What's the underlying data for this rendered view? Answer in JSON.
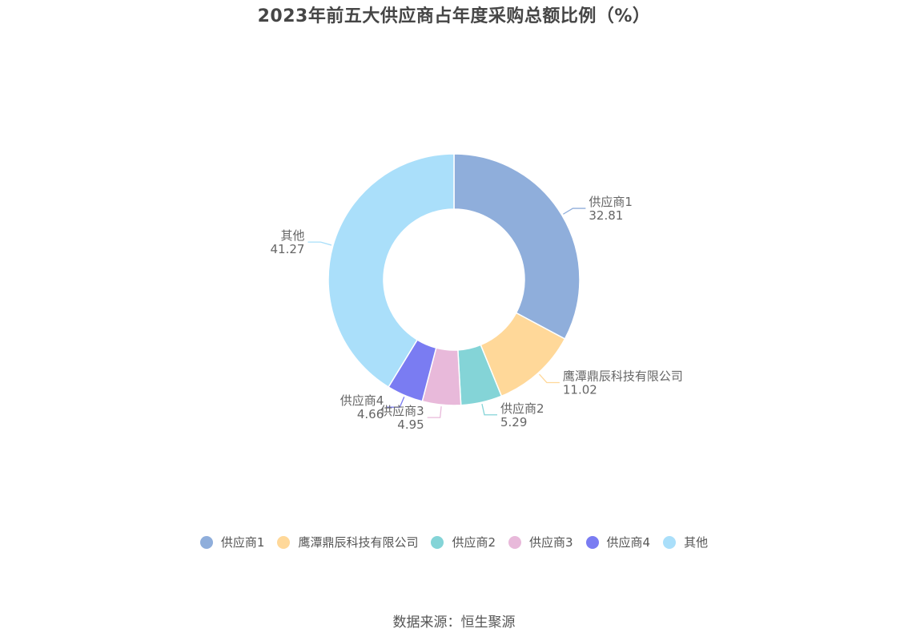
{
  "chart_data": {
    "type": "pie",
    "title": "2023年前五大供应商占年度采购总额比例（%）",
    "source": "数据来源：恒生聚源",
    "legend_position": "bottom",
    "categories": [
      "供应商1",
      "鹰潭鼎辰科技有限公司",
      "供应商2",
      "供应商3",
      "供应商4",
      "其他"
    ],
    "values": [
      32.81,
      11.02,
      5.29,
      4.95,
      4.66,
      41.27
    ],
    "value_labels": [
      "32.81",
      "11.02",
      "5.29",
      "4.95",
      "4.66",
      "41.27"
    ],
    "colors": [
      "#8faedb",
      "#ffd899",
      "#84d4d7",
      "#e8b9da",
      "#7a7cf2",
      "#aadffa"
    ]
  }
}
